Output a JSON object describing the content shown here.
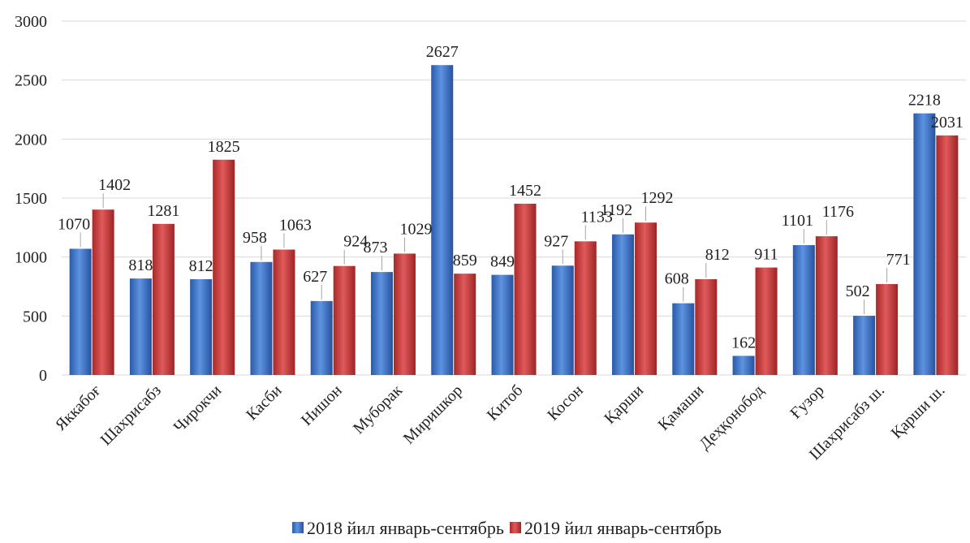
{
  "chart_data": {
    "type": "bar",
    "categories": [
      "Яккабоғ",
      "Шахрисабз",
      "Чирокчи",
      "Касби",
      "Нишон",
      "Муборак",
      "Миришкор",
      "Китоб",
      "Косон",
      "Қарши",
      "Қамаши",
      "Деҳқонобод",
      "Ғузор",
      "Шахрисабз ш.",
      "Қарши ш."
    ],
    "series": [
      {
        "name": "2018 йил январь-сентябрь",
        "color": "#3d72c4",
        "values": [
          1070,
          818,
          812,
          958,
          627,
          873,
          2627,
          849,
          927,
          1192,
          608,
          162,
          1101,
          502,
          2218
        ]
      },
      {
        "name": "2019 йил январь-сентябрь",
        "color": "#c83a3a",
        "values": [
          1402,
          1281,
          1825,
          1063,
          924,
          1029,
          859,
          1452,
          1133,
          1292,
          812,
          911,
          1176,
          771,
          2031
        ]
      }
    ],
    "ylim": [
      0,
      3000
    ],
    "yticks": [
      0,
      500,
      1000,
      1500,
      2000,
      2500,
      3000
    ],
    "grid": true,
    "legend": "bottom"
  }
}
